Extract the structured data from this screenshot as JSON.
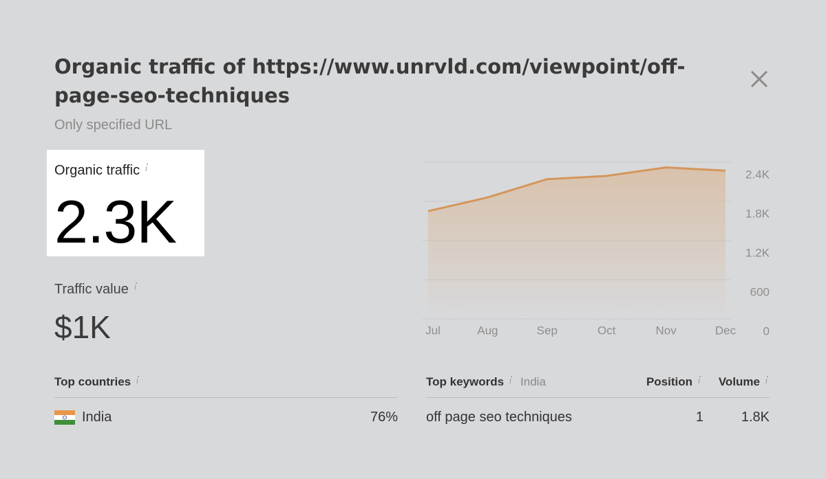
{
  "header": {
    "title": "Organic traffic of https://www.unrvld.com/viewpoint/off-page-seo-techniques",
    "subtitle": "Only specified URL"
  },
  "metrics": [
    {
      "label": "Organic traffic",
      "value": "2.3K"
    },
    {
      "label": "Traffic value",
      "value": "$1K"
    }
  ],
  "chart_data": {
    "type": "area",
    "categories": [
      "Jul",
      "Aug",
      "Sep",
      "Oct",
      "Nov",
      "Dec"
    ],
    "values": [
      1650,
      1860,
      2140,
      2190,
      2320,
      2270
    ],
    "color": "#d4965a",
    "ylim": [
      0,
      2400
    ],
    "yticks": [
      0,
      600,
      {
        "value": 1200,
        "label": "1.2K"
      },
      {
        "value": 1800,
        "label": "1.8K"
      },
      {
        "value": 2400,
        "label": "2.4K"
      }
    ],
    "grid": true
  },
  "top_countries": {
    "header": "Top countries",
    "rows": [
      {
        "country": "India",
        "share": "76%"
      }
    ]
  },
  "top_keywords": {
    "header": "Top keywords",
    "filter": "India",
    "columns": [
      "Position",
      "Volume"
    ],
    "rows": [
      {
        "keyword": "off page seo techniques",
        "position": "1",
        "volume": "1.8K"
      }
    ]
  }
}
